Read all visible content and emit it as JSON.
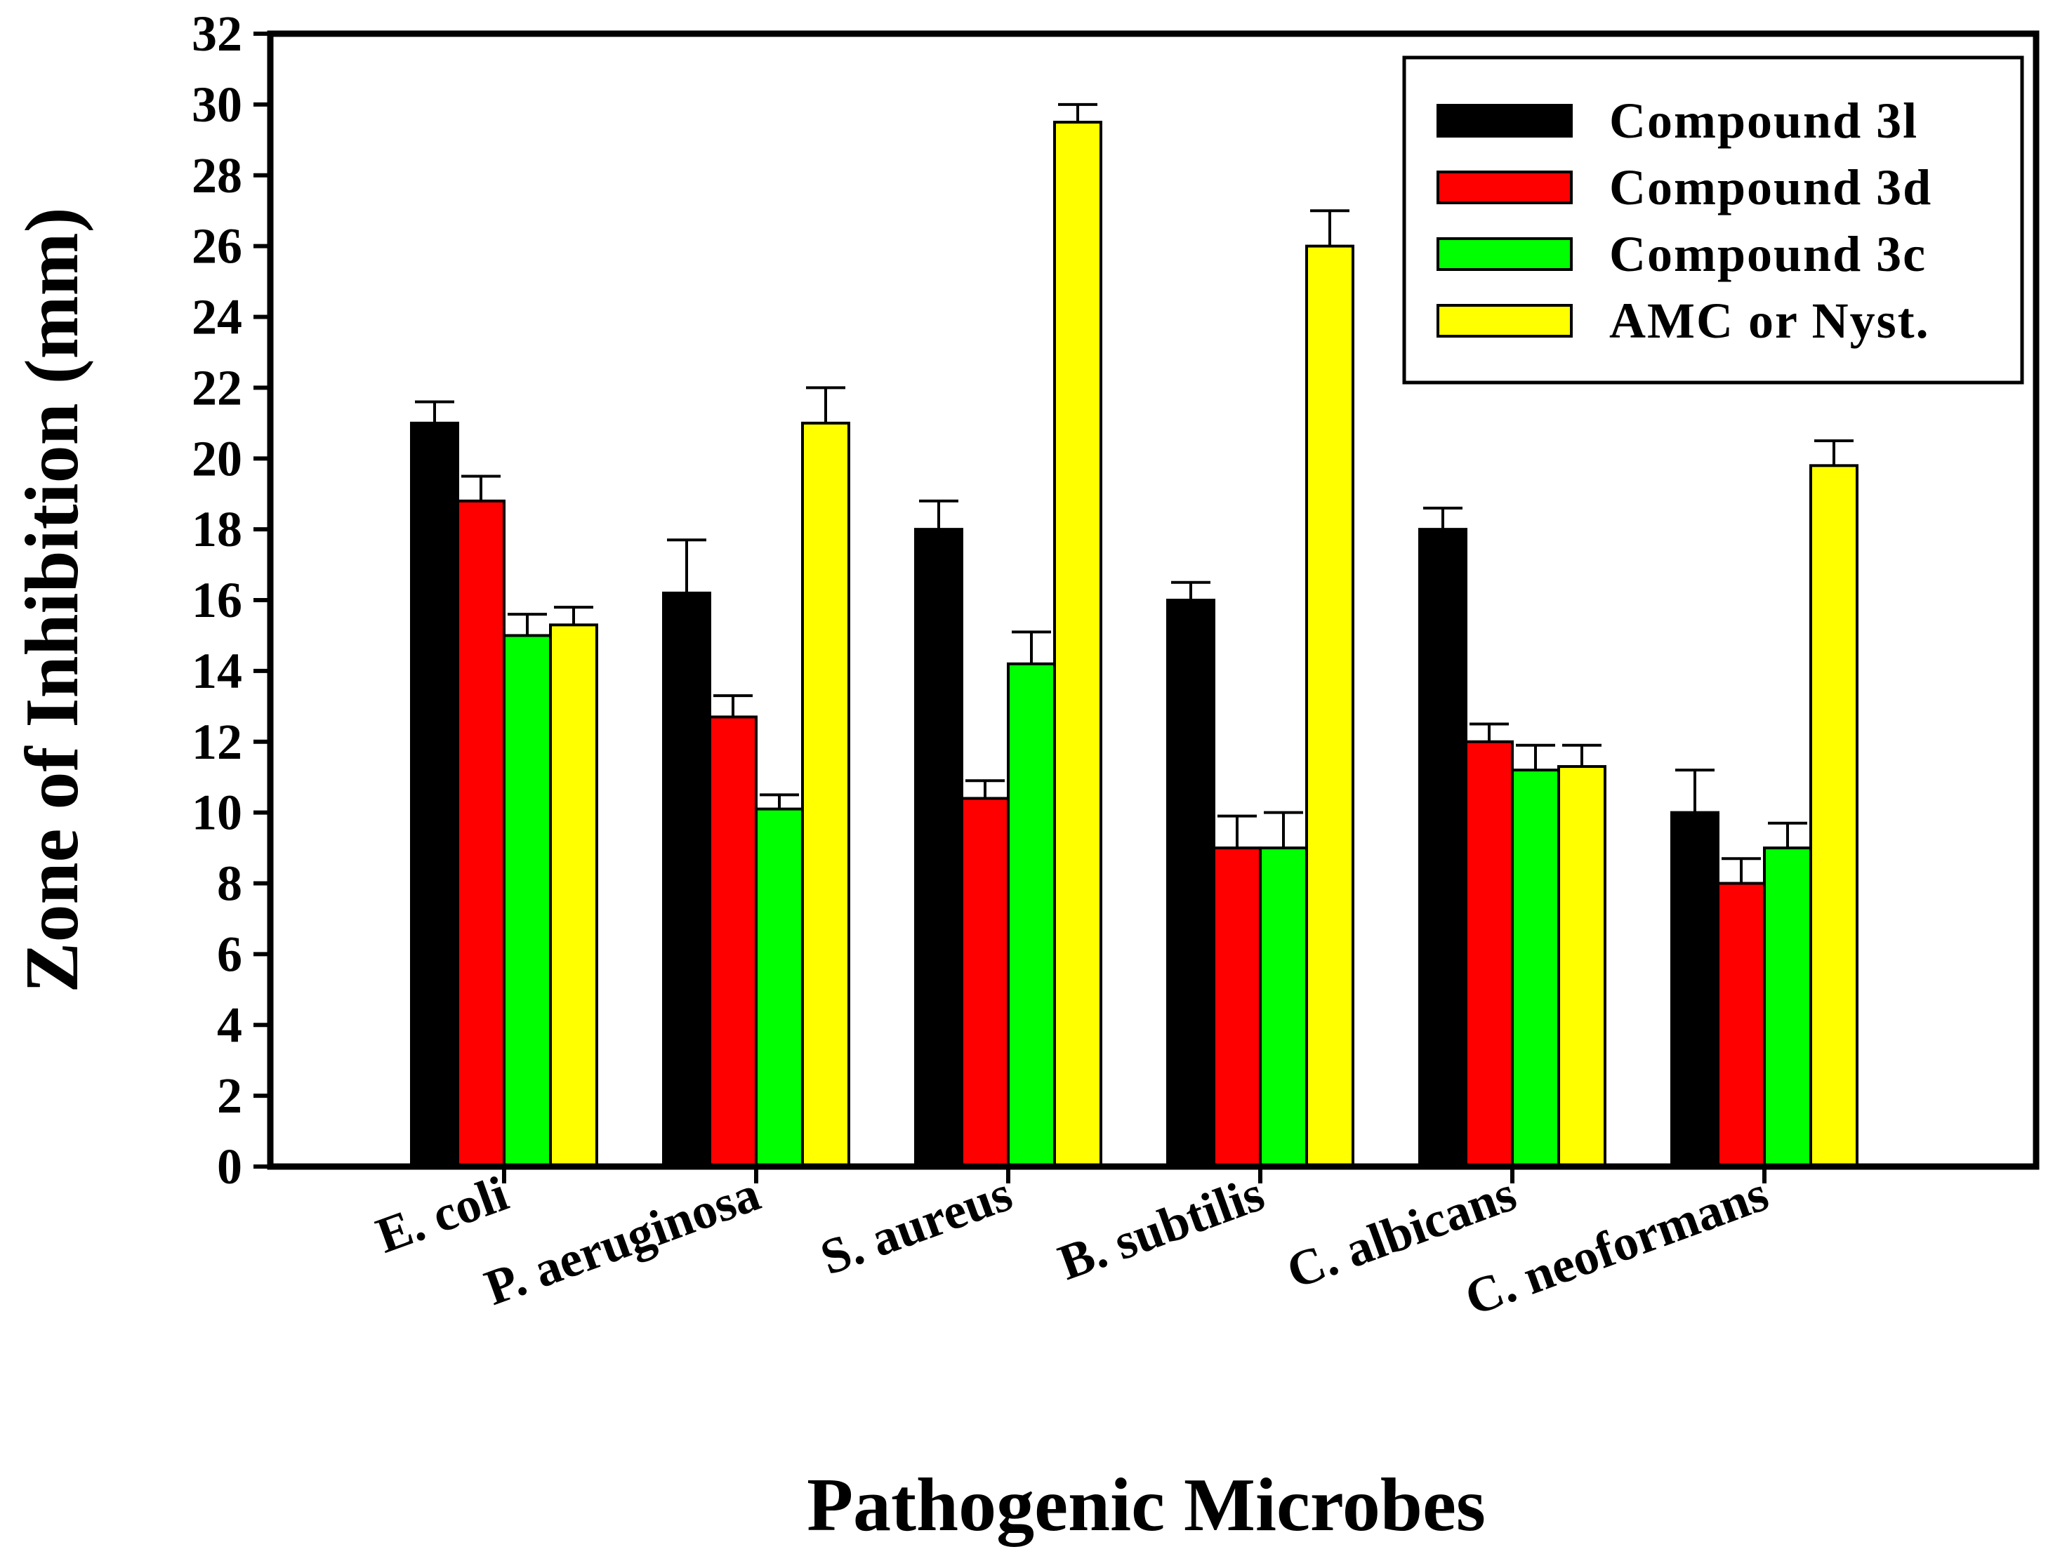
{
  "chart_data": {
    "type": "bar",
    "title": "",
    "xlabel": "Pathogenic Microbes",
    "ylabel": "Zone of Inhibition (mm)",
    "ylim": [
      0,
      32
    ],
    "yticks": [
      "0",
      "2",
      "4",
      "6",
      "8",
      "10",
      "12",
      "14",
      "16",
      "18",
      "20",
      "22",
      "24",
      "26",
      "28",
      "30",
      "32"
    ],
    "categories": [
      "E. coli",
      "P. aeruginosa",
      "S. aureus",
      "B. subtilis",
      "C. albicans",
      "C. neoformans"
    ],
    "series": [
      {
        "name": "Compound 3l",
        "color": "#000000",
        "values": [
          21.0,
          16.2,
          18.0,
          16.0,
          18.0,
          10.0
        ],
        "errors": [
          0.6,
          1.5,
          0.8,
          0.5,
          0.6,
          1.2
        ]
      },
      {
        "name": "Compound 3d",
        "color": "#ff0000",
        "values": [
          18.8,
          12.7,
          10.4,
          9.0,
          12.0,
          8.0
        ],
        "errors": [
          0.7,
          0.6,
          0.5,
          0.9,
          0.5,
          0.7
        ]
      },
      {
        "name": "Compound 3c",
        "color": "#00ff00",
        "values": [
          15.0,
          10.1,
          14.2,
          9.0,
          11.2,
          9.0
        ],
        "errors": [
          0.6,
          0.4,
          0.9,
          1.0,
          0.7,
          0.7
        ]
      },
      {
        "name": "AMC or Nyst.",
        "color": "#ffff00",
        "values": [
          15.3,
          21.0,
          29.5,
          26.0,
          11.3,
          19.8
        ],
        "errors": [
          0.5,
          1.0,
          0.5,
          1.0,
          0.6,
          0.7
        ]
      }
    ],
    "legend_position": "top-right",
    "grid": false
  }
}
